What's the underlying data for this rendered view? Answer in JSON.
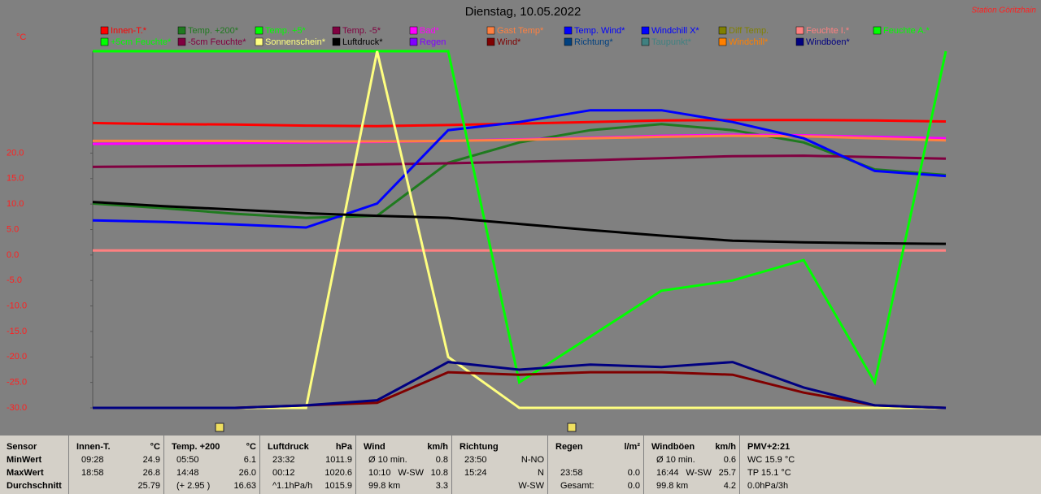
{
  "header": {
    "station": "Station Göritzhain",
    "unit": "°C"
  },
  "chart_data": {
    "type": "line",
    "title": "Dienstag, 10.05.2022",
    "ylim": [
      -30,
      40
    ],
    "yticks": [
      {
        "value": 20,
        "label": "20.0"
      },
      {
        "value": 15,
        "label": "15.0"
      },
      {
        "value": 10,
        "label": "10.0"
      },
      {
        "value": 5,
        "label": "5.0"
      },
      {
        "value": 0,
        "label": "0.0"
      },
      {
        "value": -5,
        "label": "-5.0"
      },
      {
        "value": -10,
        "label": "-10.0"
      },
      {
        "value": -15,
        "label": "-15.0"
      },
      {
        "value": -20,
        "label": "-20.0"
      },
      {
        "value": -25,
        "label": "-25.0"
      },
      {
        "value": -30,
        "label": "-30.0"
      }
    ],
    "series": [
      {
        "name": "Innen-T.*",
        "color": "#ff0000",
        "values": [
          25.9,
          25.7,
          25.6,
          25.4,
          25.3,
          25.5,
          25.8,
          26.1,
          26.4,
          26.5,
          26.5,
          26.4,
          26.2
        ]
      },
      {
        "name": "Temp. +200*",
        "color": "#1f7a1f",
        "values": [
          10.1,
          9.2,
          8.1,
          7.3,
          7.7,
          18.1,
          22.1,
          24.5,
          25.7,
          24.5,
          22.1,
          16.8,
          15.7
        ]
      },
      {
        "name": "Temp. +5*",
        "color": "#00ff00"
      },
      {
        "name": "Temp. -5*",
        "color": "#800040",
        "values": [
          17.3,
          17.4,
          17.5,
          17.6,
          17.8,
          18.0,
          18.3,
          18.6,
          19.0,
          19.4,
          19.5,
          19.2,
          18.9
        ]
      },
      {
        "name": "Bad*",
        "color": "#ff00ff",
        "values": [
          21.8,
          21.9,
          22.0,
          22.1,
          22.2,
          22.4,
          22.7,
          23.0,
          23.4,
          23.6,
          23.5,
          23.2,
          22.9
        ]
      },
      {
        "name": "Gast Temp*",
        "color": "#ff8040",
        "values": [
          22.4,
          22.4,
          22.4,
          22.3,
          22.3,
          22.4,
          22.6,
          22.9,
          23.2,
          23.4,
          23.3,
          22.9,
          22.5
        ]
      },
      {
        "name": "Temp. Wind*",
        "color": "#0000ff",
        "values": [
          6.8,
          6.5,
          6.0,
          5.4,
          10.1,
          24.5,
          26.1,
          28.4,
          28.4,
          26.1,
          22.9,
          16.5,
          15.5
        ]
      },
      {
        "name": "Windchill X*",
        "color": "#0000ff"
      },
      {
        "name": "Diff Temp.",
        "color": "#808000"
      },
      {
        "name": "Feuchte I.*",
        "color": "#ff8080",
        "values": [
          0.9,
          0.9,
          0.9,
          0.9,
          0.9,
          0.9,
          0.9,
          0.9,
          0.9,
          0.9,
          0.9,
          0.9,
          0.9
        ]
      },
      {
        "name": "Feuchte A.*",
        "color": "#00ff00",
        "values": [
          40,
          40,
          40,
          40,
          40,
          40,
          -25,
          -16,
          -7,
          -5,
          -1,
          -25,
          40
        ]
      },
      {
        "name": "+5cm Feuchte*",
        "color": "#00ff00"
      },
      {
        "name": "-5cm Feuchte*",
        "color": "#800040"
      },
      {
        "name": "Sonnenschein*",
        "color": "#ffff80",
        "values": [
          -30,
          -30,
          -30,
          -30,
          40,
          -20,
          -30,
          -30,
          -30,
          -30,
          -30,
          -30,
          -30
        ]
      },
      {
        "name": "Luftdruck*",
        "color": "#000000",
        "values": [
          10.4,
          9.6,
          8.9,
          8.2,
          7.7,
          7.3,
          6.1,
          4.9,
          3.8,
          2.8,
          2.5,
          2.3,
          2.2
        ]
      },
      {
        "name": "Regen",
        "color": "#8000ff"
      },
      {
        "name": "Wind*",
        "color": "#800000",
        "values": [
          -30,
          -30,
          -30,
          -29.5,
          -29,
          -23,
          -23.5,
          -23,
          -23,
          -23.5,
          -27,
          -29.5,
          -30
        ]
      },
      {
        "name": "Richtung*",
        "color": "#004080"
      },
      {
        "name": "Taupunkt*",
        "color": "#408080"
      },
      {
        "name": "Windchill*",
        "color": "#ff8000"
      },
      {
        "name": "Windböen*",
        "color": "#000080",
        "values": [
          -30,
          -30,
          -30,
          -29.5,
          -28.5,
          -21,
          -22.5,
          -21.5,
          -22,
          -21,
          -26,
          -29.5,
          -30
        ]
      }
    ]
  },
  "table": {
    "sensor": [
      "Sensor",
      "MinWert",
      "MaxWert",
      "Durchschnitt"
    ],
    "groups": [
      {
        "title": "Innen-T.",
        "unit": "°C",
        "rows": [
          [
            "09:28",
            "24.9"
          ],
          [
            "18:58",
            "26.8"
          ],
          [
            "25.79"
          ]
        ]
      },
      {
        "title": "Temp. +200",
        "unit": "°C",
        "rows": [
          [
            "05:50",
            "6.1"
          ],
          [
            "14:48",
            "26.0"
          ],
          [
            "(+ 2.95 )",
            "16.63"
          ]
        ]
      },
      {
        "title": "Luftdruck",
        "unit": "hPa",
        "rows": [
          [
            "23:32",
            "1011.9"
          ],
          [
            "00:12",
            "1020.6"
          ],
          [
            "^1.1hPa/h",
            "1015.9"
          ]
        ]
      },
      {
        "title": "Wind",
        "unit": "km/h",
        "rows": [
          [
            "Ø 10 min.",
            "0.8"
          ],
          [
            "10:10",
            "W-SW",
            "10.8"
          ],
          [
            "99.8 km",
            "3.3"
          ]
        ]
      },
      {
        "title": "Richtung",
        "rows": [
          [
            "23:50",
            "N-NO"
          ],
          [
            "15:24",
            "N"
          ],
          [
            "W-SW"
          ]
        ]
      },
      {
        "title": "Regen",
        "unit": "l/m²",
        "rows": [
          [],
          [
            "23:58",
            "0.0"
          ],
          [
            "Gesamt:",
            "0.0"
          ]
        ]
      },
      {
        "title": "Windböen",
        "unit": "km/h",
        "rows": [
          [
            "Ø 10 min.",
            "0.6"
          ],
          [
            "16:44",
            "W-SW",
            "25.7"
          ],
          [
            "99.8 km",
            "4.2"
          ]
        ]
      },
      {
        "title": "PMV+2:21",
        "align": "left",
        "rows": [
          [
            "WC 15.9 °C"
          ],
          [
            "TP 15.1 °C"
          ],
          [
            "0.0hPa/3h"
          ]
        ]
      }
    ]
  }
}
